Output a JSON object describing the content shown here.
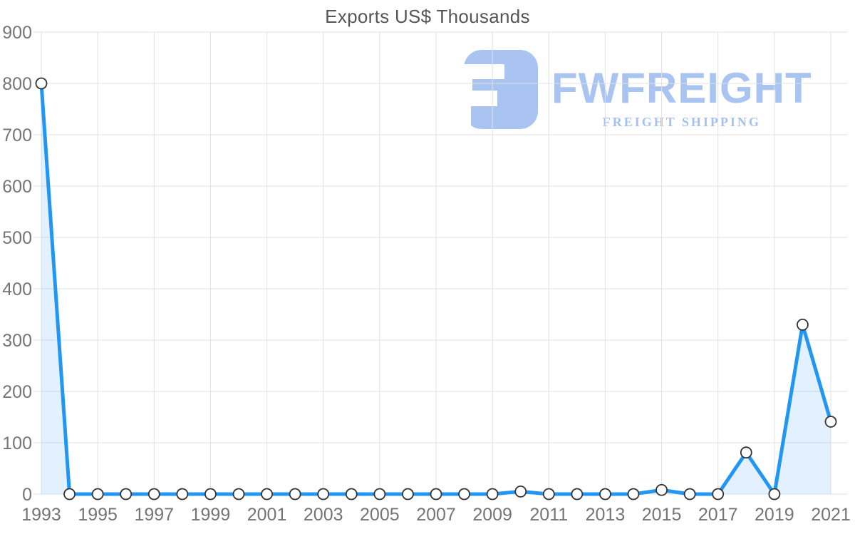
{
  "title": "Exports US$ Thousands",
  "logo": {
    "brand": "FWFREIGHT",
    "tagline": "FREIGHT SHIPPING",
    "color": "#a9c4f0",
    "tagline_color": "#a3c1f2"
  },
  "colors": {
    "line": "#2196f3",
    "area_fill": "#2196f3",
    "area_opacity": 0.13,
    "grid": "#e0e0e0",
    "axis_label": "#757575",
    "title_text": "#565656",
    "marker_fill": "#ffffff",
    "marker_stroke": "#333333"
  },
  "chart_data": {
    "type": "line",
    "title": "Exports US$ Thousands",
    "xlabel": "",
    "ylabel": "",
    "x": [
      1993,
      1994,
      1995,
      1996,
      1997,
      1998,
      1999,
      2000,
      2001,
      2002,
      2003,
      2004,
      2005,
      2006,
      2007,
      2008,
      2009,
      2010,
      2011,
      2012,
      2013,
      2014,
      2015,
      2016,
      2017,
      2018,
      2019,
      2020,
      2021
    ],
    "values": [
      800,
      0,
      0,
      0,
      0,
      0,
      0,
      0,
      0,
      0,
      0,
      0,
      0,
      0,
      0,
      0,
      0,
      5,
      0,
      0,
      0,
      0,
      8,
      0,
      0,
      81,
      0,
      330,
      141
    ],
    "ylim": [
      0,
      900
    ],
    "yticks": [
      0,
      100,
      200,
      300,
      400,
      500,
      600,
      700,
      800,
      900
    ],
    "xticks": [
      1993,
      1995,
      1997,
      1999,
      2001,
      2003,
      2005,
      2007,
      2009,
      2011,
      2013,
      2015,
      2017,
      2019,
      2021
    ],
    "grid": true,
    "legend": false,
    "marker": "circle",
    "area": true
  }
}
